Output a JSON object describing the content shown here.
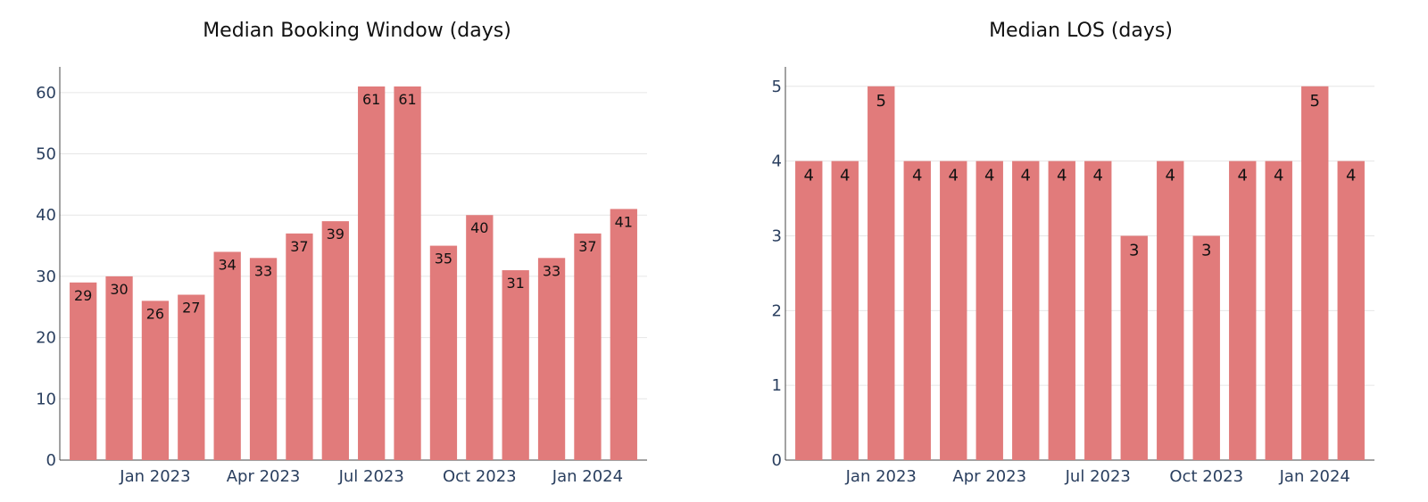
{
  "chart_data": [
    {
      "type": "bar",
      "title": "Median Booking Window (days)",
      "xlabel": "",
      "ylabel": "",
      "x": [
        "2022-11",
        "2022-12",
        "2023-01",
        "2023-02",
        "2023-03",
        "2023-04",
        "2023-05",
        "2023-06",
        "2023-07",
        "2023-08",
        "2023-09",
        "2023-10",
        "2023-11",
        "2023-12",
        "2024-01",
        "2024-02"
      ],
      "values": [
        29,
        30,
        26,
        27,
        34,
        33,
        37,
        39,
        61,
        61,
        35,
        40,
        31,
        33,
        37,
        41
      ],
      "x_ticks": [
        {
          "at": "2023-01",
          "label": "Jan 2023"
        },
        {
          "at": "2023-04",
          "label": "Apr 2023"
        },
        {
          "at": "2023-07",
          "label": "Jul 2023"
        },
        {
          "at": "2023-10",
          "label": "Oct 2023"
        },
        {
          "at": "2024-01",
          "label": "Jan 2024"
        }
      ],
      "y_ticks": [
        0,
        10,
        20,
        30,
        40,
        50,
        60
      ],
      "ylim": [
        0,
        64.2
      ],
      "grid": true,
      "bar_color": "#e17b7b",
      "legend": "none"
    },
    {
      "type": "bar",
      "title": "Median LOS (days)",
      "xlabel": "",
      "ylabel": "",
      "x": [
        "2022-11",
        "2022-12",
        "2023-01",
        "2023-02",
        "2023-03",
        "2023-04",
        "2023-05",
        "2023-06",
        "2023-07",
        "2023-08",
        "2023-09",
        "2023-10",
        "2023-11",
        "2023-12",
        "2024-01",
        "2024-02"
      ],
      "values": [
        4,
        4,
        5,
        4,
        4,
        4,
        4,
        4,
        4,
        3,
        4,
        3,
        4,
        4,
        5,
        4
      ],
      "x_ticks": [
        {
          "at": "2023-01",
          "label": "Jan 2023"
        },
        {
          "at": "2023-04",
          "label": "Apr 2023"
        },
        {
          "at": "2023-07",
          "label": "Jul 2023"
        },
        {
          "at": "2023-10",
          "label": "Oct 2023"
        },
        {
          "at": "2024-01",
          "label": "Jan 2024"
        }
      ],
      "y_ticks": [
        0,
        1,
        2,
        3,
        4,
        5
      ],
      "ylim": [
        0,
        5.26
      ],
      "grid": true,
      "bar_color": "#e17b7b",
      "legend": "none"
    }
  ]
}
